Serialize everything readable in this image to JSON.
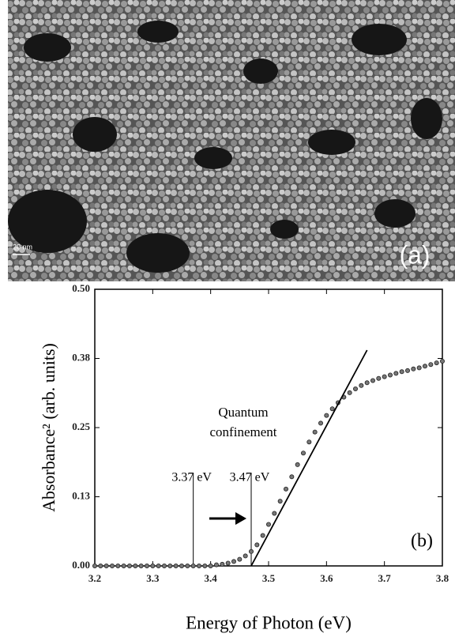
{
  "image": {
    "label": "(a)",
    "scale_bar": "20 nm"
  },
  "chart_data": {
    "type": "scatter",
    "xlabel": "Energy of Photon (eV)",
    "ylabel": "Absorbance² (arb. units)",
    "panel_label": "(b)",
    "annotation": [
      "Quantum",
      "confinement"
    ],
    "x": [
      3.2,
      3.21,
      3.22,
      3.23,
      3.24,
      3.25,
      3.26,
      3.27,
      3.28,
      3.29,
      3.3,
      3.31,
      3.32,
      3.33,
      3.34,
      3.35,
      3.36,
      3.37,
      3.38,
      3.39,
      3.4,
      3.41,
      3.42,
      3.43,
      3.44,
      3.45,
      3.46,
      3.47,
      3.48,
      3.49,
      3.5,
      3.51,
      3.52,
      3.53,
      3.54,
      3.55,
      3.56,
      3.57,
      3.58,
      3.59,
      3.6,
      3.61,
      3.62,
      3.63,
      3.64,
      3.65,
      3.66,
      3.67,
      3.68,
      3.69,
      3.7,
      3.71,
      3.72,
      3.73,
      3.74,
      3.75,
      3.76,
      3.77,
      3.78,
      3.79,
      3.8
    ],
    "values": [
      0,
      0,
      0,
      0,
      0,
      0,
      0,
      0,
      0,
      0,
      0,
      0,
      0,
      0,
      0,
      0,
      0,
      0,
      0,
      0,
      0,
      0.002,
      0.003,
      0.005,
      0.008,
      0.012,
      0.018,
      0.026,
      0.038,
      0.055,
      0.075,
      0.095,
      0.117,
      0.139,
      0.161,
      0.183,
      0.204,
      0.224,
      0.242,
      0.258,
      0.272,
      0.284,
      0.295,
      0.305,
      0.313,
      0.32,
      0.326,
      0.331,
      0.335,
      0.339,
      0.342,
      0.345,
      0.348,
      0.351,
      0.353,
      0.356,
      0.358,
      0.361,
      0.364,
      0.367,
      0.37
    ],
    "color": "#777777",
    "fit_line": {
      "x": [
        3.47,
        3.67
      ],
      "y": [
        0,
        0.39
      ]
    },
    "vlines": [
      {
        "x": 3.37,
        "label": "3.37 eV"
      },
      {
        "x": 3.47,
        "label": "3.47 eV"
      }
    ],
    "xlim": [
      3.2,
      3.8
    ],
    "xticks": [
      3.2,
      3.3,
      3.4,
      3.5,
      3.6,
      3.7,
      3.8
    ],
    "ylim": [
      0,
      0.5
    ],
    "yticks": [
      {
        "value": 0,
        "label": "0.00"
      },
      {
        "value": 0.125,
        "label": "0.13"
      },
      0.25,
      {
        "value": 0.375,
        "label": "0.38"
      },
      {
        "value": 0.5,
        "label": "0.50"
      }
    ]
  }
}
